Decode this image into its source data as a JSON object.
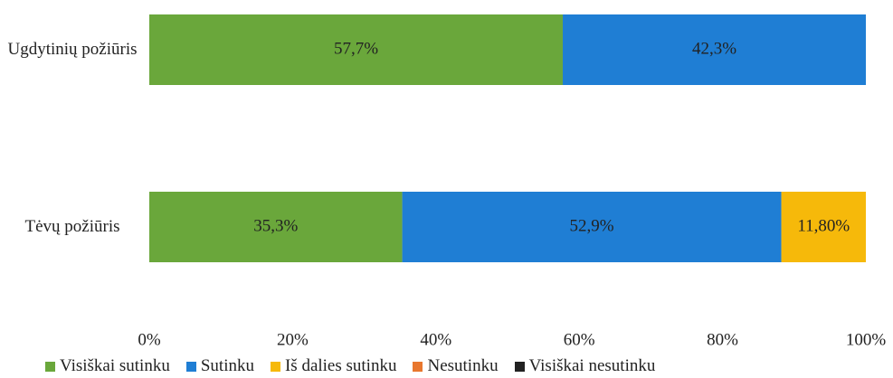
{
  "chart_data": {
    "type": "stacked_barh",
    "categories": [
      "Ugdytinių požiūris",
      "Tėvų požiūris"
    ],
    "series": [
      {
        "name": "Visiškai sutinku",
        "color": "#6aa73b",
        "values": [
          57.7,
          35.3
        ],
        "value_labels": [
          "57,7%",
          "35,3%"
        ]
      },
      {
        "name": "Sutinku",
        "color": "#1f7ed4",
        "values": [
          42.3,
          52.9
        ],
        "value_labels": [
          "42,3%",
          "52,9%"
        ]
      },
      {
        "name": "Iš dalies sutinku",
        "color": "#f6b90a",
        "values": [
          null,
          11.8
        ],
        "value_labels": [
          null,
          "11,80%"
        ]
      },
      {
        "name": "Nesutinku",
        "color": "#e8772e",
        "values": [
          null,
          null
        ],
        "value_labels": [
          null,
          null
        ]
      },
      {
        "name": "Visiškai nesutinku",
        "color": "#222222",
        "values": [
          null,
          null
        ],
        "value_labels": [
          null,
          null
        ]
      }
    ],
    "xlim": [
      0,
      100
    ],
    "xticks": [
      {
        "value": 0,
        "label": "0%"
      },
      {
        "value": 20,
        "label": "20%"
      },
      {
        "value": 40,
        "label": "40%"
      },
      {
        "value": 60,
        "label": "60%"
      },
      {
        "value": 80,
        "label": "80%"
      },
      {
        "value": 100,
        "label": "100%"
      }
    ],
    "legend": "bottom"
  }
}
